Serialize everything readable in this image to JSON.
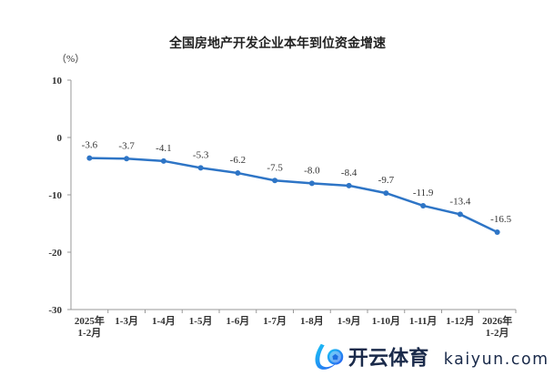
{
  "chart_data": {
    "type": "line",
    "title": "全国房地产开发企业本年到位资金增速",
    "ylabel": "（%）",
    "ylim": [
      -30,
      10
    ],
    "yticks": [
      10,
      0,
      -10,
      -20,
      -30
    ],
    "categories": [
      [
        "2025年",
        "1-2月"
      ],
      [
        "1-3月"
      ],
      [
        "1-4月"
      ],
      [
        "1-5月"
      ],
      [
        "1-6月"
      ],
      [
        "1-7月"
      ],
      [
        "1-8月"
      ],
      [
        "1-9月"
      ],
      [
        "1-10月"
      ],
      [
        "1-11月"
      ],
      [
        "1-12月"
      ],
      [
        "2026年",
        "1-2月"
      ]
    ],
    "values": [
      -3.6,
      -3.7,
      -4.1,
      -5.3,
      -6.2,
      -7.5,
      -8.0,
      -8.4,
      -9.7,
      -11.9,
      -13.4,
      -16.5
    ],
    "data_labels": true,
    "grid": false,
    "color": "#2e75c6"
  },
  "watermark": {
    "brand": "开云体育",
    "site": "kaiyun.com"
  }
}
